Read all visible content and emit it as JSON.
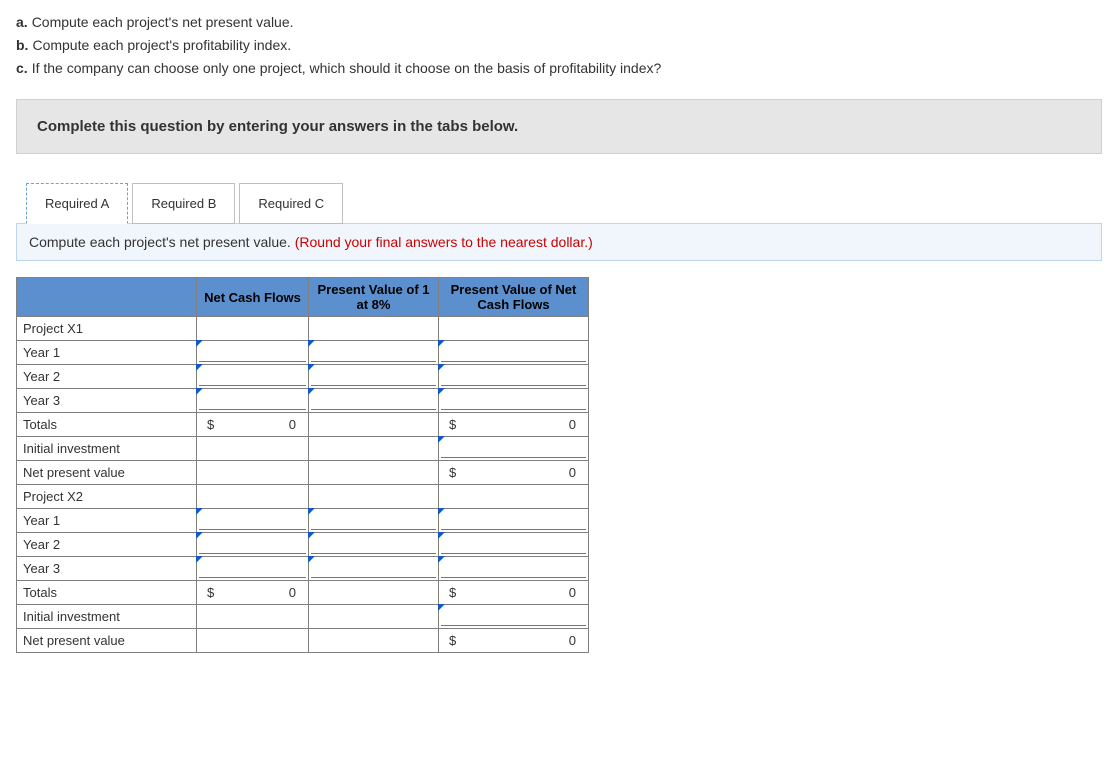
{
  "prompts": {
    "a_label": "a.",
    "a_text": "Compute each project's net present value.",
    "b_label": "b.",
    "b_text": "Compute each project's profitability index.",
    "c_label": "c.",
    "c_text": "If the company can choose only one project, which should it choose on the basis of profitability index?"
  },
  "instruction": "Complete this question by entering your answers in the tabs below.",
  "tabs": {
    "a": "Required A",
    "b": "Required B",
    "c": "Required C"
  },
  "question_text": "Compute each project's net present value. ",
  "question_hint": "(Round your final answers to the nearest dollar.)",
  "table": {
    "headers": {
      "ncf": "Net Cash Flows",
      "pv1": "Present Value of 1 at 8%",
      "pvcf": "Present Value of Net Cash Flows"
    },
    "rows": {
      "p1": "Project X1",
      "y1": "Year 1",
      "y2": "Year 2",
      "y3": "Year 3",
      "totals": "Totals",
      "init": "Initial investment",
      "npv": "Net present value",
      "p2": "Project X2"
    },
    "currency": "$",
    "zero": "0"
  },
  "style": {
    "header_bg": "#5b8fce",
    "band_bg": "#f0f6fc",
    "band_border": "#bcd6ef",
    "instr_bg": "#e6e6e6",
    "tick_color": "#1358c7",
    "red": "#c00"
  }
}
